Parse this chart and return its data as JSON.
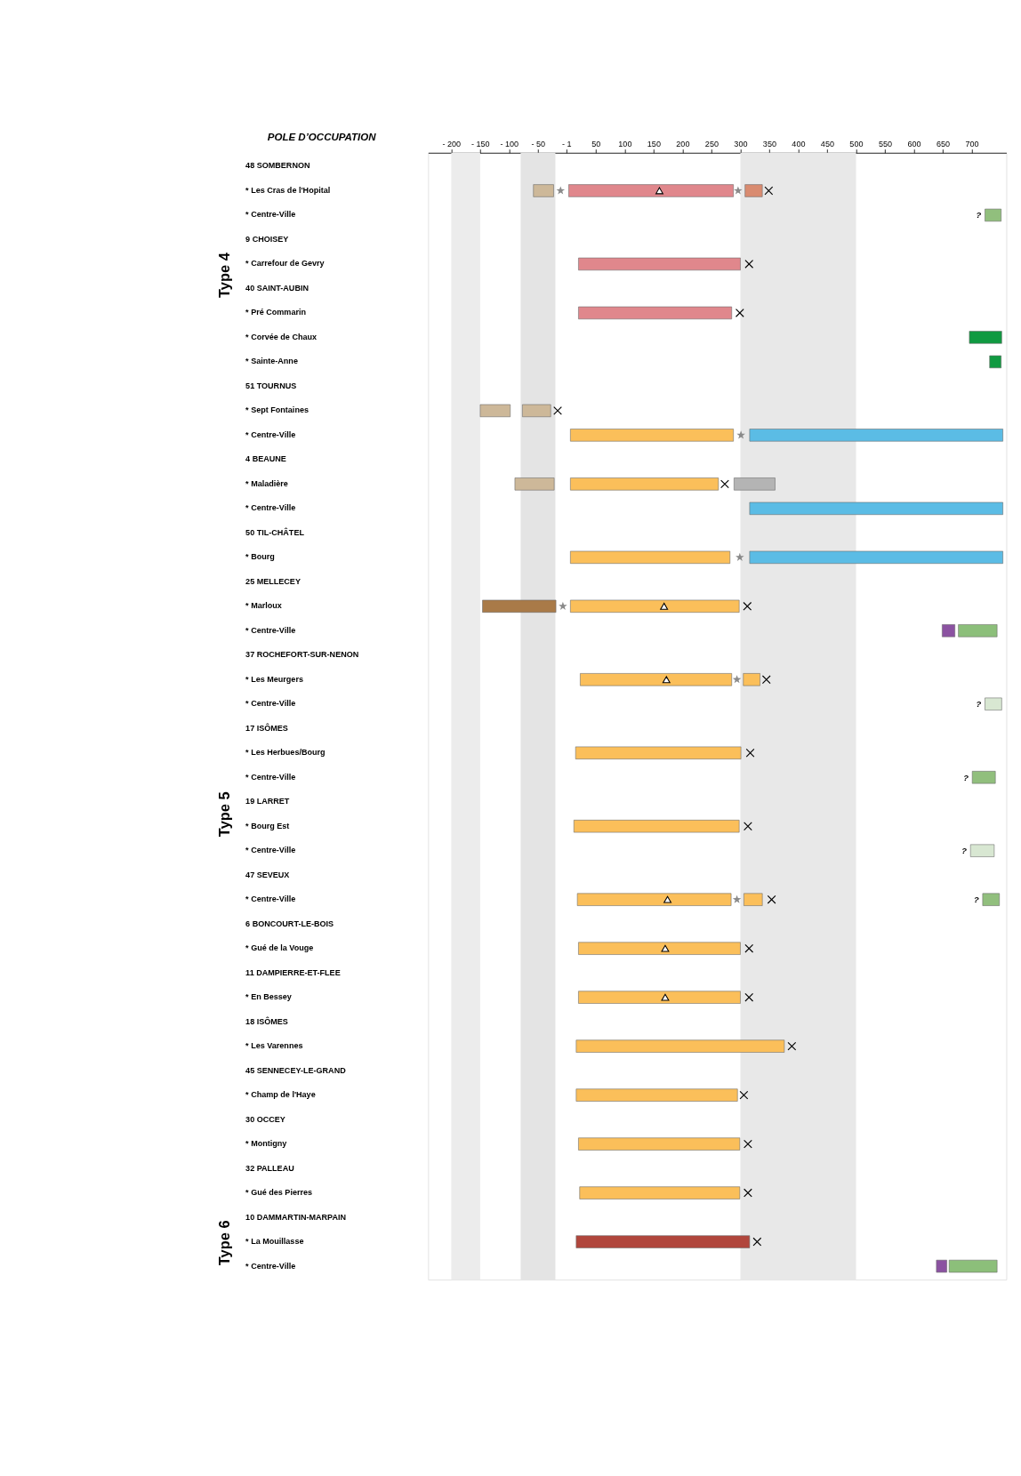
{
  "chart_data": {
    "type": "bar",
    "orientation": "horizontal",
    "ylabel": "POLE D’OCCUPATION",
    "categories": [
      "48 SOMBERNON",
      "* Les Cras de l'Hopital",
      "* Centre-Ville",
      "9 CHOISEY",
      "* Carrefour de Gevry",
      "40 SAINT-AUBIN",
      "* Pré Commarin",
      "* Corvée de Chaux",
      "* Sainte-Anne",
      "51 TOURNUS",
      "* Sept Fontaines",
      "* Centre-Ville",
      "4 BEAUNE",
      "* Maladière",
      "* Centre-Ville",
      "50 TIL-CHÂTEL",
      "* Bourg",
      "25 MELLECEY",
      "* Marloux",
      "* Centre-Ville",
      "37 ROCHEFORT-SUR-NENON",
      "* Les Meurgers",
      "* Centre-Ville",
      "17 ISÔMES",
      "* Les Herbues/Bourg",
      "* Centre-Ville",
      "19 LARRET",
      "* Bourg Est",
      "* Centre-Ville",
      "47 SEVEUX",
      "* Centre-Ville",
      "6 BONCOURT-LE-BOIS",
      "* Gué de la Vouge",
      "11 DAMPIERRE-ET-FLEE",
      "* En Bessey",
      "18 ISÔMES",
      "* Les Varennes",
      "45 SENNECEY-LE-GRAND",
      "* Champ de l'Haye",
      "30 OCCEY",
      "* Montigny",
      "32 PALLEAU",
      "* Gué des Pierres",
      "10 DAMMARTIN-MARPAIN",
      "* La Mouillasse",
      "* Centre-Ville"
    ],
    "xlim": [
      -240,
      760
    ],
    "xticks": [
      {
        "value": -200,
        "label": "- 200"
      },
      {
        "value": -150,
        "label": "- 150"
      },
      {
        "value": -100,
        "label": "- 100"
      },
      {
        "value": -50,
        "label": "- 50"
      },
      {
        "value": -1,
        "label": "- 1"
      },
      50,
      100,
      150,
      200,
      250,
      300,
      350,
      400,
      450,
      500,
      550,
      600,
      650,
      700
    ],
    "bands": [
      {
        "axis": "x",
        "from": -200,
        "to": -150,
        "color": "#ececec"
      },
      {
        "axis": "x",
        "from": -80,
        "to": -20,
        "color": "#e4e4e4"
      },
      {
        "axis": "x",
        "from": 300,
        "to": 500,
        "color": "#e8e8e8"
      }
    ],
    "annotations": [
      "Type 4",
      "Type 5",
      "Type 6"
    ],
    "series": [
      {
        "type": "bar",
        "color": "#cdb899",
        "base": [
          null,
          -58,
          null,
          null,
          null,
          null,
          null,
          null,
          null,
          null,
          -150,
          null,
          null,
          -90,
          null,
          null,
          null,
          null,
          null,
          null,
          null,
          null,
          null,
          null,
          null,
          null,
          null,
          null,
          null,
          null,
          null,
          null,
          null,
          null,
          null,
          null,
          null,
          null,
          null,
          null,
          null,
          null,
          null,
          null,
          null,
          null
        ],
        "values": [
          null,
          35,
          null,
          null,
          null,
          null,
          null,
          null,
          null,
          null,
          52,
          null,
          null,
          68,
          null,
          null,
          null,
          null,
          null,
          null,
          null,
          null,
          null,
          null,
          null,
          null,
          null,
          null,
          null,
          null,
          null,
          null,
          null,
          null,
          null,
          null,
          null,
          null,
          null,
          null,
          null,
          null,
          null,
          null,
          null,
          null
        ]
      },
      {
        "type": "bar",
        "color": "#cdb899",
        "base": [
          null,
          null,
          null,
          null,
          null,
          null,
          null,
          null,
          null,
          null,
          -77,
          null,
          null,
          null,
          null,
          null,
          null,
          null,
          null,
          null,
          null,
          null,
          null,
          null,
          null,
          null,
          null,
          null,
          null,
          null,
          null,
          null,
          null,
          null,
          null,
          null,
          null,
          null,
          null,
          null,
          null,
          null,
          null,
          null,
          null,
          null
        ],
        "values": [
          null,
          null,
          null,
          null,
          null,
          null,
          null,
          null,
          null,
          null,
          49,
          null,
          null,
          null,
          null,
          null,
          null,
          null,
          null,
          null,
          null,
          null,
          null,
          null,
          null,
          null,
          null,
          null,
          null,
          null,
          null,
          null,
          null,
          null,
          null,
          null,
          null,
          null,
          null,
          null,
          null,
          null,
          null,
          null,
          null,
          null
        ]
      },
      {
        "type": "bar",
        "color": "#e0878c",
        "base": [
          null,
          3,
          null,
          null,
          20,
          null,
          20,
          null,
          null,
          null,
          null,
          null,
          null,
          null,
          null,
          null,
          null,
          null,
          null,
          null,
          null,
          null,
          null,
          null,
          null,
          null,
          null,
          null,
          null,
          null,
          null,
          null,
          null,
          null,
          null,
          null,
          null,
          null,
          null,
          null,
          null,
          null,
          null,
          null,
          null,
          null
        ],
        "values": [
          null,
          285,
          null,
          null,
          280,
          null,
          265,
          null,
          null,
          null,
          null,
          null,
          null,
          null,
          null,
          null,
          null,
          null,
          null,
          null,
          null,
          null,
          null,
          null,
          null,
          null,
          null,
          null,
          null,
          null,
          null,
          null,
          null,
          null,
          null,
          null,
          null,
          null,
          null,
          null,
          null,
          null,
          null,
          null,
          null,
          null
        ]
      },
      {
        "type": "bar",
        "color": "#d98b70",
        "base": [
          null,
          308,
          null,
          null,
          null,
          null,
          null,
          null,
          null,
          null,
          null,
          null,
          null,
          null,
          null,
          null,
          null,
          null,
          null,
          null,
          null,
          null,
          null,
          null,
          null,
          null,
          null,
          null,
          null,
          null,
          null,
          null,
          null,
          null,
          null,
          null,
          null,
          null,
          null,
          null,
          null,
          null,
          null,
          null,
          null,
          null
        ],
        "values": [
          null,
          30,
          null,
          null,
          null,
          null,
          null,
          null,
          null,
          null,
          null,
          null,
          null,
          null,
          null,
          null,
          null,
          null,
          null,
          null,
          null,
          null,
          null,
          null,
          null,
          null,
          null,
          null,
          null,
          null,
          null,
          null,
          null,
          null,
          null,
          null,
          null,
          null,
          null,
          null,
          null,
          null,
          null,
          null,
          null,
          null
        ]
      },
      {
        "type": "bar",
        "color": "#91bf7d",
        "base": [
          null,
          null,
          723,
          null,
          null,
          null,
          null,
          null,
          null,
          null,
          null,
          null,
          null,
          null,
          null,
          null,
          null,
          null,
          null,
          null,
          null,
          null,
          null,
          null,
          null,
          701,
          null,
          null,
          null,
          null,
          719,
          null,
          null,
          null,
          null,
          null,
          null,
          null,
          null,
          null,
          null,
          null,
          null,
          null,
          null,
          null
        ],
        "values": [
          null,
          null,
          28,
          null,
          null,
          null,
          null,
          null,
          null,
          null,
          null,
          null,
          null,
          null,
          null,
          null,
          null,
          null,
          null,
          null,
          null,
          null,
          null,
          null,
          null,
          40,
          null,
          null,
          null,
          null,
          29,
          null,
          null,
          null,
          null,
          null,
          null,
          null,
          null,
          null,
          null,
          null,
          null,
          null,
          null,
          null
        ],
        "value_labels": [
          null,
          null,
          "?",
          null,
          null,
          null,
          null,
          null,
          null,
          null,
          null,
          null,
          null,
          null,
          null,
          null,
          null,
          null,
          null,
          null,
          null,
          null,
          null,
          null,
          null,
          "?",
          null,
          null,
          null,
          null,
          "?",
          null,
          null,
          null,
          null,
          null,
          null,
          null,
          null,
          null,
          null,
          null,
          null,
          null,
          null,
          null
        ]
      },
      {
        "type": "bar",
        "color": "#d8e7d2",
        "base": [
          null,
          null,
          null,
          null,
          null,
          null,
          null,
          null,
          null,
          null,
          null,
          null,
          null,
          null,
          null,
          null,
          null,
          null,
          null,
          null,
          null,
          null,
          723,
          null,
          null,
          null,
          null,
          null,
          698,
          null,
          null,
          null,
          null,
          null,
          null,
          null,
          null,
          null,
          null,
          null,
          null,
          null,
          null,
          null,
          null,
          null
        ],
        "values": [
          null,
          null,
          null,
          null,
          null,
          null,
          null,
          null,
          null,
          null,
          null,
          null,
          null,
          null,
          null,
          null,
          null,
          null,
          null,
          null,
          null,
          null,
          29,
          null,
          null,
          null,
          null,
          null,
          41,
          null,
          null,
          null,
          null,
          null,
          null,
          null,
          null,
          null,
          null,
          null,
          null,
          null,
          null,
          null,
          null,
          null
        ],
        "value_labels": [
          null,
          null,
          null,
          null,
          null,
          null,
          null,
          null,
          null,
          null,
          null,
          null,
          null,
          null,
          null,
          null,
          null,
          null,
          null,
          null,
          null,
          null,
          "?",
          null,
          null,
          null,
          null,
          null,
          "?",
          null,
          null,
          null,
          null,
          null,
          null,
          null,
          null,
          null,
          null,
          null,
          null,
          null,
          null,
          null,
          null,
          null
        ]
      },
      {
        "type": "bar",
        "color": "#b4b4b4",
        "base": [
          null,
          null,
          null,
          null,
          null,
          null,
          null,
          null,
          null,
          null,
          null,
          null,
          null,
          289,
          null,
          null,
          null,
          null,
          null,
          null,
          null,
          null,
          null,
          null,
          null,
          null,
          null,
          null,
          null,
          null,
          null,
          null,
          null,
          null,
          null,
          null,
          null,
          null,
          null,
          null,
          null,
          null,
          null,
          null,
          null,
          null
        ],
        "values": [
          null,
          null,
          null,
          null,
          null,
          null,
          null,
          null,
          null,
          null,
          null,
          null,
          null,
          71,
          null,
          null,
          null,
          null,
          null,
          null,
          null,
          null,
          null,
          null,
          null,
          null,
          null,
          null,
          null,
          null,
          null,
          null,
          null,
          null,
          null,
          null,
          null,
          null,
          null,
          null,
          null,
          null,
          null,
          null,
          null,
          null
        ]
      },
      {
        "type": "bar",
        "color": "#109a41",
        "base": [
          null,
          null,
          null,
          null,
          null,
          null,
          null,
          696,
          731,
          null,
          null,
          null,
          null,
          null,
          null,
          null,
          null,
          null,
          null,
          null,
          null,
          null,
          null,
          null,
          null,
          null,
          null,
          null,
          null,
          null,
          null,
          null,
          null,
          null,
          null,
          null,
          null,
          null,
          null,
          null,
          null,
          null,
          null,
          null,
          null,
          null
        ],
        "values": [
          null,
          null,
          null,
          null,
          null,
          null,
          null,
          56,
          20,
          null,
          null,
          null,
          null,
          null,
          null,
          null,
          null,
          null,
          null,
          null,
          null,
          null,
          null,
          null,
          null,
          null,
          null,
          null,
          null,
          null,
          null,
          null,
          null,
          null,
          null,
          null,
          null,
          null,
          null,
          null,
          null,
          null,
          null,
          null,
          null,
          null
        ]
      },
      {
        "type": "bar",
        "color": "#5bbce5",
        "base": [
          null,
          null,
          null,
          null,
          null,
          null,
          null,
          null,
          null,
          null,
          null,
          316,
          null,
          null,
          316,
          null,
          316,
          null,
          null,
          null,
          null,
          null,
          null,
          null,
          null,
          null,
          null,
          null,
          null,
          null,
          null,
          null,
          null,
          null,
          null,
          null,
          null,
          null,
          null,
          null,
          null,
          null,
          null,
          null,
          null,
          null
        ],
        "values": [
          null,
          null,
          null,
          null,
          null,
          null,
          null,
          null,
          null,
          null,
          null,
          438,
          null,
          null,
          438,
          null,
          438,
          null,
          null,
          null,
          null,
          null,
          null,
          null,
          null,
          null,
          null,
          null,
          null,
          null,
          null,
          null,
          null,
          null,
          null,
          null,
          null,
          null,
          null,
          null,
          null,
          null,
          null,
          null,
          null,
          null
        ]
      },
      {
        "type": "bar",
        "color": "#fbbf5a",
        "base": [
          null,
          null,
          null,
          null,
          null,
          null,
          null,
          null,
          null,
          null,
          null,
          6,
          null,
          6,
          null,
          null,
          6,
          null,
          6,
          null,
          null,
          23,
          null,
          null,
          15,
          null,
          null,
          12,
          null,
          null,
          18,
          null,
          20,
          null,
          20,
          null,
          16,
          null,
          16,
          null,
          20,
          null,
          22,
          null,
          null,
          null
        ],
        "values": [
          null,
          null,
          null,
          null,
          null,
          null,
          null,
          null,
          null,
          null,
          null,
          282,
          null,
          256,
          null,
          null,
          276,
          null,
          292,
          null,
          null,
          262,
          null,
          null,
          286,
          null,
          null,
          286,
          null,
          null,
          266,
          null,
          280,
          null,
          280,
          null,
          360,
          null,
          279,
          null,
          279,
          null,
          277,
          null,
          null,
          null
        ]
      },
      {
        "type": "bar",
        "color": "#fbbf5a",
        "base": [
          null,
          null,
          null,
          null,
          null,
          null,
          null,
          null,
          null,
          null,
          null,
          null,
          null,
          null,
          null,
          null,
          null,
          null,
          null,
          null,
          null,
          305,
          null,
          null,
          null,
          null,
          null,
          null,
          null,
          null,
          306,
          null,
          null,
          null,
          null,
          null,
          null,
          null,
          null,
          null,
          null,
          null,
          null,
          null,
          null,
          null
        ],
        "values": [
          null,
          null,
          null,
          null,
          null,
          null,
          null,
          null,
          null,
          null,
          null,
          null,
          null,
          null,
          null,
          null,
          null,
          null,
          null,
          null,
          null,
          29,
          null,
          null,
          null,
          null,
          null,
          null,
          null,
          null,
          32,
          null,
          null,
          null,
          null,
          null,
          null,
          null,
          null,
          null,
          null,
          null,
          null,
          null,
          null,
          null
        ]
      },
      {
        "type": "bar",
        "color": "#a97a48",
        "base": [
          null,
          null,
          null,
          null,
          null,
          null,
          null,
          null,
          null,
          null,
          null,
          null,
          null,
          null,
          null,
          null,
          null,
          null,
          -146,
          null,
          null,
          null,
          null,
          null,
          null,
          null,
          null,
          null,
          null,
          null,
          null,
          null,
          null,
          null,
          null,
          null,
          null,
          null,
          null,
          null,
          null,
          null,
          null,
          null,
          null,
          null
        ],
        "values": [
          null,
          null,
          null,
          null,
          null,
          null,
          null,
          null,
          null,
          null,
          null,
          null,
          null,
          null,
          null,
          null,
          null,
          null,
          127,
          null,
          null,
          null,
          null,
          null,
          null,
          null,
          null,
          null,
          null,
          null,
          null,
          null,
          null,
          null,
          null,
          null,
          null,
          null,
          null,
          null,
          null,
          null,
          null,
          null,
          null,
          null
        ]
      },
      {
        "type": "bar",
        "color": "#8b52a1",
        "base": [
          null,
          null,
          null,
          null,
          null,
          null,
          null,
          null,
          null,
          null,
          null,
          null,
          null,
          null,
          null,
          null,
          null,
          null,
          null,
          649,
          null,
          null,
          null,
          null,
          null,
          null,
          null,
          null,
          null,
          null,
          null,
          null,
          null,
          null,
          null,
          null,
          null,
          null,
          null,
          null,
          null,
          null,
          null,
          null,
          null,
          639
        ],
        "values": [
          null,
          null,
          null,
          null,
          null,
          null,
          null,
          null,
          null,
          null,
          null,
          null,
          null,
          null,
          null,
          null,
          null,
          null,
          null,
          22,
          null,
          null,
          null,
          null,
          null,
          null,
          null,
          null,
          null,
          null,
          null,
          null,
          null,
          null,
          null,
          null,
          null,
          null,
          null,
          null,
          null,
          null,
          null,
          null,
          null,
          18
        ]
      },
      {
        "type": "bar",
        "color": "#8cbf7a",
        "base": [
          null,
          null,
          null,
          null,
          null,
          null,
          null,
          null,
          null,
          null,
          null,
          null,
          null,
          null,
          null,
          null,
          null,
          null,
          null,
          677,
          null,
          null,
          null,
          null,
          null,
          null,
          null,
          null,
          null,
          null,
          null,
          null,
          null,
          null,
          null,
          null,
          null,
          null,
          null,
          null,
          null,
          null,
          null,
          null,
          null,
          661
        ],
        "values": [
          null,
          null,
          null,
          null,
          null,
          null,
          null,
          null,
          null,
          null,
          null,
          null,
          null,
          null,
          null,
          null,
          null,
          null,
          null,
          67,
          null,
          null,
          null,
          null,
          null,
          null,
          null,
          null,
          null,
          null,
          null,
          null,
          null,
          null,
          null,
          null,
          null,
          null,
          null,
          null,
          null,
          null,
          null,
          null,
          null,
          83
        ]
      },
      {
        "type": "bar",
        "color": "#b1463c",
        "base": [
          null,
          null,
          null,
          null,
          null,
          null,
          null,
          null,
          null,
          null,
          null,
          null,
          null,
          null,
          null,
          null,
          null,
          null,
          null,
          null,
          null,
          null,
          null,
          null,
          null,
          null,
          null,
          null,
          null,
          null,
          null,
          null,
          null,
          null,
          null,
          null,
          null,
          null,
          null,
          null,
          null,
          null,
          null,
          null,
          16,
          null
        ],
        "values": [
          null,
          null,
          null,
          null,
          null,
          null,
          null,
          null,
          null,
          null,
          null,
          null,
          null,
          null,
          null,
          null,
          null,
          null,
          null,
          null,
          null,
          null,
          null,
          null,
          null,
          null,
          null,
          null,
          null,
          null,
          null,
          null,
          null,
          null,
          null,
          null,
          null,
          null,
          null,
          null,
          null,
          null,
          null,
          null,
          300,
          null
        ]
      },
      {
        "type": "scatter",
        "marker": "cross",
        "color": "#000000",
        "values": [
          null,
          349,
          null,
          null,
          315,
          null,
          299,
          null,
          null,
          null,
          -16,
          null,
          null,
          273,
          null,
          null,
          null,
          null,
          312,
          null,
          null,
          345,
          null,
          null,
          317,
          null,
          null,
          313,
          null,
          null,
          354,
          null,
          315,
          null,
          315,
          null,
          389,
          null,
          306,
          null,
          313,
          null,
          313,
          null,
          329,
          null
        ]
      },
      {
        "type": "scatter",
        "marker": "star",
        "color": "#8a8a8a",
        "values": [
          null,
          -11,
          null,
          null,
          null,
          null,
          null,
          null,
          null,
          null,
          null,
          null,
          null,
          null,
          null,
          null,
          null,
          null,
          -7,
          null,
          null,
          null,
          null,
          null,
          null,
          null,
          null,
          null,
          null,
          null,
          null,
          null,
          null,
          null,
          null,
          null,
          null,
          null,
          null,
          null,
          null,
          null,
          null,
          null,
          null,
          null
        ]
      },
      {
        "type": "scatter",
        "marker": "star",
        "color": "#8a8a8a",
        "values": [
          null,
          296,
          null,
          null,
          null,
          null,
          null,
          null,
          null,
          null,
          null,
          301,
          null,
          null,
          null,
          null,
          299,
          null,
          null,
          null,
          null,
          294,
          null,
          null,
          null,
          null,
          null,
          null,
          null,
          null,
          294,
          null,
          null,
          null,
          null,
          null,
          null,
          null,
          null,
          null,
          null,
          null,
          null,
          null,
          null,
          null
        ]
      },
      {
        "type": "scatter",
        "marker": "triangle",
        "color": "#000000",
        "values": [
          null,
          160,
          null,
          null,
          null,
          null,
          null,
          null,
          null,
          null,
          null,
          null,
          null,
          null,
          null,
          null,
          null,
          null,
          168,
          null,
          null,
          172,
          null,
          null,
          null,
          null,
          null,
          null,
          null,
          null,
          174,
          null,
          170,
          null,
          170,
          null,
          null,
          null,
          null,
          null,
          null,
          null,
          null,
          null,
          null,
          null
        ]
      }
    ]
  }
}
